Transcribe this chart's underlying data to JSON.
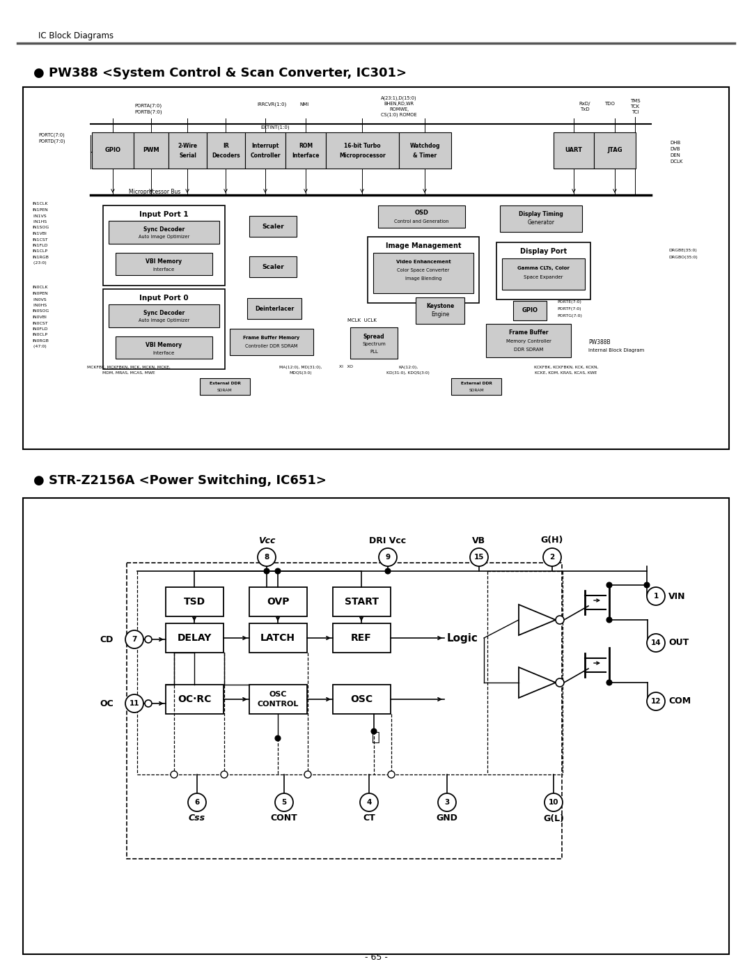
{
  "page_title": "IC Block Diagrams",
  "section1_title": "● PW388 <System Control & Scan Converter, IC301>",
  "section2_title": "● STR-Z2156A <Power Switching, IC651>",
  "page_number": "- 65 -",
  "bg_color": "#ffffff",
  "fill_gray": "#cccccc",
  "fill_white": "#ffffff",
  "line_color": "#000000"
}
